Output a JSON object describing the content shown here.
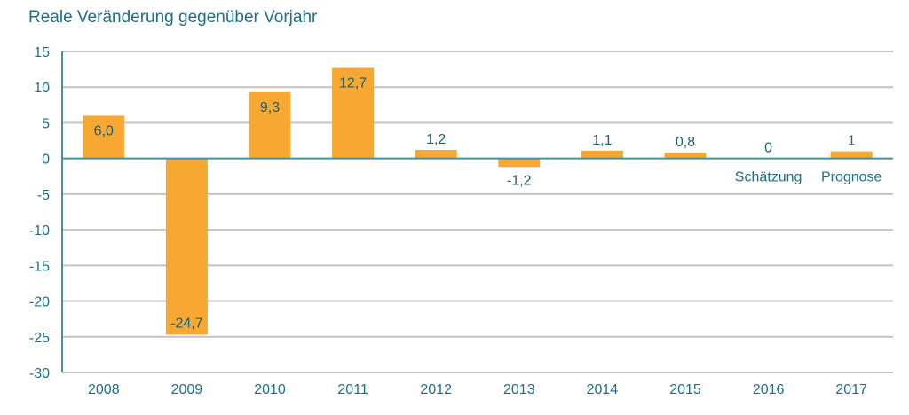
{
  "chart_data": {
    "type": "bar",
    "title": "Reale Veränderung gegenüber Vorjahr",
    "xlabel": "",
    "ylabel": "",
    "categories": [
      "2008",
      "2009",
      "2010",
      "2011",
      "2012",
      "2013",
      "2014",
      "2015",
      "2016",
      "2017"
    ],
    "values": [
      6.0,
      -24.7,
      9.3,
      12.7,
      1.2,
      -1.2,
      1.1,
      0.8,
      0,
      1
    ],
    "data_labels": [
      "6,0",
      "-24,7",
      "9,3",
      "12,7",
      "1,2",
      "-1,2",
      "1,1",
      "0,8",
      "0",
      "1"
    ],
    "annotations": [
      {
        "category": "2016",
        "text": "Schätzung"
      },
      {
        "category": "2017",
        "text": "Prognose"
      }
    ],
    "ylim": [
      -30,
      15
    ],
    "yticks": [
      15,
      10,
      5,
      0,
      -5,
      -10,
      -15,
      -20,
      -25,
      -30
    ],
    "grid": true,
    "legend": "none",
    "colors": {
      "bar": "#f7a833",
      "axis": "#4a8fa3",
      "grid": "#c4c4c4",
      "text": "#1d6f86"
    }
  }
}
